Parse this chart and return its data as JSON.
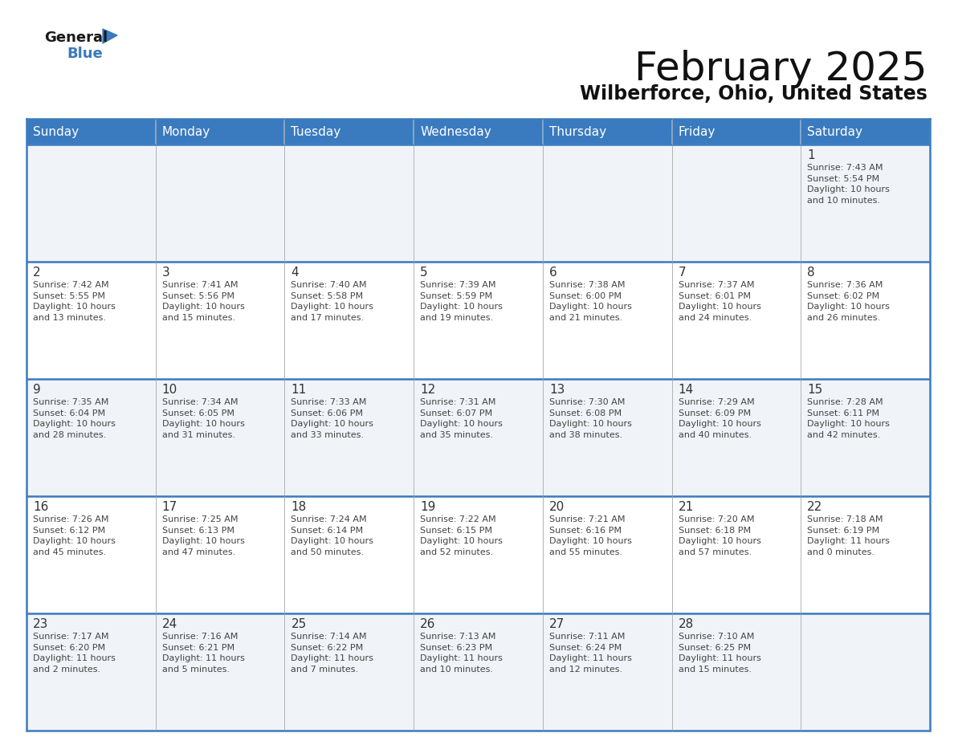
{
  "title": "February 2025",
  "subtitle": "Wilberforce, Ohio, United States",
  "header_color": "#3a7abf",
  "header_text_color": "#ffffff",
  "cell_bg_even": "#f0f4f8",
  "cell_bg_odd": "#ffffff",
  "day_headers": [
    "Sunday",
    "Monday",
    "Tuesday",
    "Wednesday",
    "Thursday",
    "Friday",
    "Saturday"
  ],
  "days": [
    {
      "day": 1,
      "col": 6,
      "row": 0,
      "sunrise": "7:43 AM",
      "sunset": "5:54 PM",
      "daylight": "10 hours\nand 10 minutes."
    },
    {
      "day": 2,
      "col": 0,
      "row": 1,
      "sunrise": "7:42 AM",
      "sunset": "5:55 PM",
      "daylight": "10 hours\nand 13 minutes."
    },
    {
      "day": 3,
      "col": 1,
      "row": 1,
      "sunrise": "7:41 AM",
      "sunset": "5:56 PM",
      "daylight": "10 hours\nand 15 minutes."
    },
    {
      "day": 4,
      "col": 2,
      "row": 1,
      "sunrise": "7:40 AM",
      "sunset": "5:58 PM",
      "daylight": "10 hours\nand 17 minutes."
    },
    {
      "day": 5,
      "col": 3,
      "row": 1,
      "sunrise": "7:39 AM",
      "sunset": "5:59 PM",
      "daylight": "10 hours\nand 19 minutes."
    },
    {
      "day": 6,
      "col": 4,
      "row": 1,
      "sunrise": "7:38 AM",
      "sunset": "6:00 PM",
      "daylight": "10 hours\nand 21 minutes."
    },
    {
      "day": 7,
      "col": 5,
      "row": 1,
      "sunrise": "7:37 AM",
      "sunset": "6:01 PM",
      "daylight": "10 hours\nand 24 minutes."
    },
    {
      "day": 8,
      "col": 6,
      "row": 1,
      "sunrise": "7:36 AM",
      "sunset": "6:02 PM",
      "daylight": "10 hours\nand 26 minutes."
    },
    {
      "day": 9,
      "col": 0,
      "row": 2,
      "sunrise": "7:35 AM",
      "sunset": "6:04 PM",
      "daylight": "10 hours\nand 28 minutes."
    },
    {
      "day": 10,
      "col": 1,
      "row": 2,
      "sunrise": "7:34 AM",
      "sunset": "6:05 PM",
      "daylight": "10 hours\nand 31 minutes."
    },
    {
      "day": 11,
      "col": 2,
      "row": 2,
      "sunrise": "7:33 AM",
      "sunset": "6:06 PM",
      "daylight": "10 hours\nand 33 minutes."
    },
    {
      "day": 12,
      "col": 3,
      "row": 2,
      "sunrise": "7:31 AM",
      "sunset": "6:07 PM",
      "daylight": "10 hours\nand 35 minutes."
    },
    {
      "day": 13,
      "col": 4,
      "row": 2,
      "sunrise": "7:30 AM",
      "sunset": "6:08 PM",
      "daylight": "10 hours\nand 38 minutes."
    },
    {
      "day": 14,
      "col": 5,
      "row": 2,
      "sunrise": "7:29 AM",
      "sunset": "6:09 PM",
      "daylight": "10 hours\nand 40 minutes."
    },
    {
      "day": 15,
      "col": 6,
      "row": 2,
      "sunrise": "7:28 AM",
      "sunset": "6:11 PM",
      "daylight": "10 hours\nand 42 minutes."
    },
    {
      "day": 16,
      "col": 0,
      "row": 3,
      "sunrise": "7:26 AM",
      "sunset": "6:12 PM",
      "daylight": "10 hours\nand 45 minutes."
    },
    {
      "day": 17,
      "col": 1,
      "row": 3,
      "sunrise": "7:25 AM",
      "sunset": "6:13 PM",
      "daylight": "10 hours\nand 47 minutes."
    },
    {
      "day": 18,
      "col": 2,
      "row": 3,
      "sunrise": "7:24 AM",
      "sunset": "6:14 PM",
      "daylight": "10 hours\nand 50 minutes."
    },
    {
      "day": 19,
      "col": 3,
      "row": 3,
      "sunrise": "7:22 AM",
      "sunset": "6:15 PM",
      "daylight": "10 hours\nand 52 minutes."
    },
    {
      "day": 20,
      "col": 4,
      "row": 3,
      "sunrise": "7:21 AM",
      "sunset": "6:16 PM",
      "daylight": "10 hours\nand 55 minutes."
    },
    {
      "day": 21,
      "col": 5,
      "row": 3,
      "sunrise": "7:20 AM",
      "sunset": "6:18 PM",
      "daylight": "10 hours\nand 57 minutes."
    },
    {
      "day": 22,
      "col": 6,
      "row": 3,
      "sunrise": "7:18 AM",
      "sunset": "6:19 PM",
      "daylight": "11 hours\nand 0 minutes."
    },
    {
      "day": 23,
      "col": 0,
      "row": 4,
      "sunrise": "7:17 AM",
      "sunset": "6:20 PM",
      "daylight": "11 hours\nand 2 minutes."
    },
    {
      "day": 24,
      "col": 1,
      "row": 4,
      "sunrise": "7:16 AM",
      "sunset": "6:21 PM",
      "daylight": "11 hours\nand 5 minutes."
    },
    {
      "day": 25,
      "col": 2,
      "row": 4,
      "sunrise": "7:14 AM",
      "sunset": "6:22 PM",
      "daylight": "11 hours\nand 7 minutes."
    },
    {
      "day": 26,
      "col": 3,
      "row": 4,
      "sunrise": "7:13 AM",
      "sunset": "6:23 PM",
      "daylight": "11 hours\nand 10 minutes."
    },
    {
      "day": 27,
      "col": 4,
      "row": 4,
      "sunrise": "7:11 AM",
      "sunset": "6:24 PM",
      "daylight": "11 hours\nand 12 minutes."
    },
    {
      "day": 28,
      "col": 5,
      "row": 4,
      "sunrise": "7:10 AM",
      "sunset": "6:25 PM",
      "daylight": "11 hours\nand 15 minutes."
    }
  ],
  "n_rows": 5,
  "n_cols": 7,
  "border_color": "#3a7abf",
  "cell_border_color": "#aaaaaa",
  "day_num_color": "#333333",
  "info_text_color": "#444444",
  "title_fontsize": 36,
  "subtitle_fontsize": 17,
  "header_fontsize": 11,
  "day_num_fontsize": 11,
  "info_fontsize": 8.0
}
